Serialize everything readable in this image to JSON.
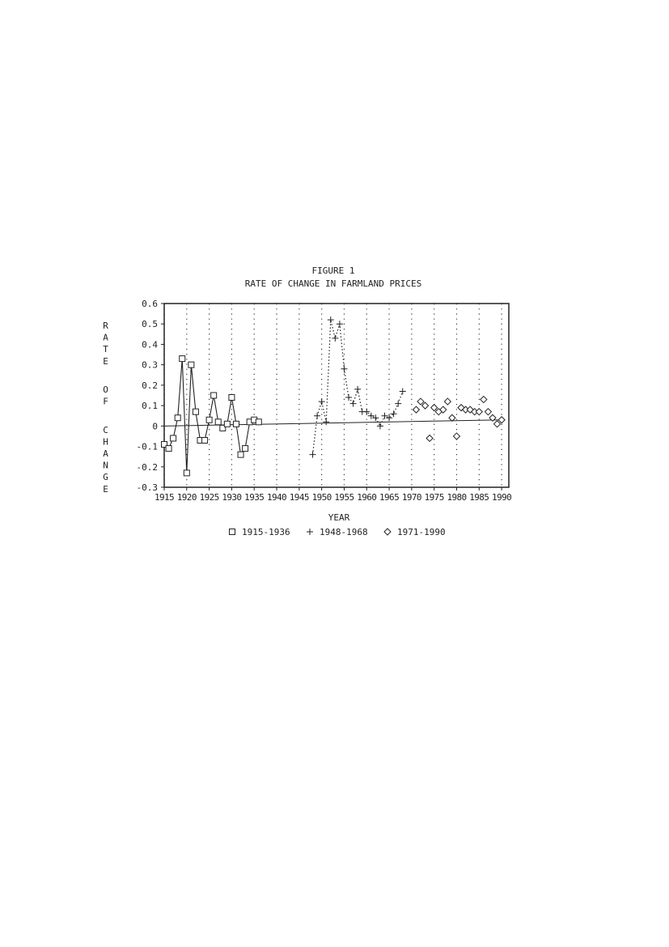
{
  "chart_data": {
    "type": "line",
    "title": "FIGURE 1",
    "subtitle": "RATE OF CHANGE IN FARMLAND PRICES",
    "x_label": "YEAR",
    "y_label": "RATE OF CHANGE",
    "xlim": [
      1915,
      1991.6
    ],
    "ylim": [
      -0.3,
      0.6
    ],
    "xticks": [
      1915,
      1920,
      1925,
      1930,
      1935,
      1940,
      1945,
      1950,
      1955,
      1960,
      1965,
      1970,
      1975,
      1980,
      1985,
      1990
    ],
    "yticks": [
      -0.3,
      -0.2,
      -0.1,
      0,
      0.1,
      0.2,
      0.3,
      0.4,
      0.5,
      0.6
    ],
    "grid": true,
    "series": [
      {
        "name": "1915-1936",
        "color": "#222222",
        "marker": "square",
        "linestyle": "solid",
        "x": [
          1915,
          1916,
          1917,
          1918,
          1919,
          1920,
          1921,
          1922,
          1923,
          1924,
          1925,
          1926,
          1927,
          1928,
          1929,
          1930,
          1931,
          1932,
          1933,
          1934,
          1935,
          1936
        ],
        "values": [
          -0.09,
          -0.11,
          -0.06,
          0.04,
          0.33,
          -0.23,
          0.3,
          0.07,
          -0.07,
          -0.07,
          0.03,
          0.15,
          0.02,
          -0.01,
          0.01,
          0.14,
          0.01,
          -0.14,
          -0.11,
          0.02,
          0.03,
          0.02
        ]
      },
      {
        "name": "1948-1968",
        "color": "#222222",
        "marker": "plus",
        "linestyle": "dotted",
        "x": [
          1948,
          1949,
          1950,
          1951,
          1952,
          1953,
          1954,
          1955,
          1956,
          1957,
          1958,
          1959,
          1960,
          1961,
          1962,
          1963,
          1964,
          1965,
          1966,
          1967,
          1968
        ],
        "values": [
          -0.14,
          0.05,
          0.12,
          0.02,
          0.52,
          0.43,
          0.5,
          0.28,
          0.14,
          0.11,
          0.18,
          0.07,
          0.07,
          0.05,
          0.04,
          0.0,
          0.05,
          0.04,
          0.06,
          0.11,
          0.17
        ]
      },
      {
        "name": "1971-1990",
        "color": "#222222",
        "marker": "diamond",
        "linestyle": "none",
        "x": [
          1971,
          1972,
          1973,
          1974,
          1975,
          1976,
          1977,
          1978,
          1979,
          1980,
          1981,
          1982,
          1983,
          1984,
          1985,
          1986,
          1987,
          1988,
          1989,
          1990
        ],
        "values": [
          0.08,
          0.12,
          0.1,
          -0.06,
          0.09,
          0.07,
          0.08,
          0.12,
          0.04,
          -0.05,
          0.09,
          0.08,
          0.08,
          0.07,
          0.07,
          0.13,
          0.07,
          0.04,
          0.01,
          0.03
        ]
      }
    ],
    "trend": {
      "x": [
        1915,
        1990
      ],
      "values": [
        0.0,
        0.03
      ]
    }
  }
}
